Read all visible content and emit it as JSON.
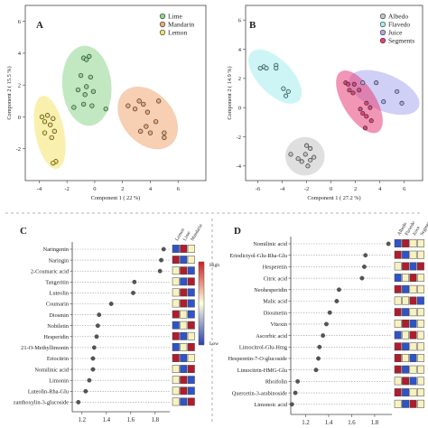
{
  "chart_data": [
    {
      "panel": "A",
      "type": "scatter",
      "xlabel": "Component 1 ( 22 %)",
      "ylabel": "Component 2 ( 15.5 %)",
      "xlim": [
        -5,
        8
      ],
      "ylim": [
        -4,
        7
      ],
      "xticks": [
        -4,
        -2,
        0,
        2,
        4,
        6
      ],
      "yticks": [
        -2,
        0,
        2,
        4,
        6
      ],
      "legend_position": "top-right",
      "series": [
        {
          "name": "Lime",
          "color": "#8ed68e",
          "points": [
            [
              -0.8,
              3.7
            ],
            [
              -0.6,
              3.6
            ],
            [
              -0.4,
              3.8
            ],
            [
              -1.0,
              2.6
            ],
            [
              -0.3,
              2.5
            ],
            [
              -0.6,
              1.9
            ],
            [
              -1.2,
              1.7
            ],
            [
              -0.7,
              1.4
            ],
            [
              -0.1,
              1.6
            ],
            [
              -0.8,
              0.8
            ],
            [
              -0.2,
              0.7
            ],
            [
              -1.5,
              0.6
            ],
            [
              0.8,
              0.5
            ]
          ]
        },
        {
          "name": "Mandarin",
          "color": "#f0a874",
          "points": [
            [
              3.2,
              1.0
            ],
            [
              4.6,
              1.0
            ],
            [
              2.4,
              0.7
            ],
            [
              2.9,
              0.5
            ],
            [
              3.8,
              0.3
            ],
            [
              3.5,
              0.8
            ],
            [
              4.4,
              -0.3
            ],
            [
              4.0,
              -1.0
            ],
            [
              3.7,
              -0.6
            ],
            [
              3.3,
              -0.9
            ],
            [
              5.0,
              -1.0
            ],
            [
              5.0,
              -1.3
            ]
          ]
        },
        {
          "name": "Lemon",
          "color": "#f5e36a",
          "points": [
            [
              -3.8,
              0.0
            ],
            [
              -3.4,
              0.1
            ],
            [
              -3.6,
              -0.3
            ],
            [
              -3.0,
              -0.1
            ],
            [
              -3.2,
              -0.5
            ],
            [
              -2.9,
              -0.9
            ],
            [
              -3.6,
              -1.0
            ],
            [
              -3.1,
              -1.3
            ],
            [
              -2.8,
              -2.8
            ],
            [
              -3.0,
              -2.9
            ]
          ]
        }
      ]
    },
    {
      "panel": "B",
      "type": "scatter",
      "xlabel": "Component 1 ( 27.2 %)",
      "ylabel": "Component 2 ( 14.9 %)",
      "xlim": [
        -7,
        7.5
      ],
      "ylim": [
        -5,
        7
      ],
      "xticks": [
        -6,
        -4,
        -2,
        0,
        2,
        4,
        6
      ],
      "yticks": [
        -4,
        -2,
        0,
        2,
        4,
        6
      ],
      "legend_position": "top-right",
      "series": [
        {
          "name": "Albedo",
          "color": "#c4c4c4",
          "points": [
            [
              -3.3,
              -3.2
            ],
            [
              -2.0,
              -2.6
            ],
            [
              -1.7,
              -2.8
            ],
            [
              -2.1,
              -3.2
            ],
            [
              -1.7,
              -3.6
            ],
            [
              -2.4,
              -3.7
            ],
            [
              -1.9,
              -4.0
            ],
            [
              -1.4,
              -3.4
            ],
            [
              -2.7,
              -3.5
            ]
          ]
        },
        {
          "name": "Flavedo",
          "color": "#a6ecec",
          "points": [
            [
              -5.8,
              2.7
            ],
            [
              -5.5,
              2.8
            ],
            [
              -5.3,
              2.7
            ],
            [
              -4.5,
              2.9
            ],
            [
              -4.5,
              2.7
            ],
            [
              -3.9,
              1.3
            ],
            [
              -3.7,
              0.8
            ],
            [
              -3.5,
              1.1
            ]
          ]
        },
        {
          "name": "Juice",
          "color": "#a9a9ee",
          "points": [
            [
              2.6,
              1.7
            ],
            [
              3.7,
              1.7
            ],
            [
              4.3,
              0.4
            ],
            [
              5.4,
              1.1
            ],
            [
              5.8,
              0.3
            ]
          ]
        },
        {
          "name": "Segments",
          "color": "#e8407a",
          "points": [
            [
              1.2,
              1.7
            ],
            [
              1.4,
              1.6
            ],
            [
              1.9,
              1.6
            ],
            [
              1.5,
              1.2
            ],
            [
              1.8,
              1.0
            ],
            [
              2.3,
              1.2
            ],
            [
              2.9,
              0.3
            ],
            [
              3.2,
              0.0
            ],
            [
              2.6,
              -0.4
            ],
            [
              2.9,
              -0.6
            ],
            [
              3.3,
              -0.9
            ],
            [
              2.8,
              -1.4
            ],
            [
              2.4,
              -0.1
            ]
          ]
        }
      ]
    },
    {
      "panel": "C",
      "type": "scatter",
      "xlabel": "VIP scores",
      "xlim": [
        1.12,
        1.92
      ],
      "xticks": [
        1.2,
        1.4,
        1.6,
        1.8
      ],
      "heatmap_columns": [
        "Lemon",
        "Lime",
        "Mandarin"
      ],
      "colorbar": {
        "high_label": "High",
        "low_label": "Low",
        "colors": [
          "#2c3fb0",
          "#ffffe0",
          "#cc2020"
        ]
      },
      "categories": [
        "Naringenin",
        "Naringin",
        "2-Coumaric acid",
        "Tangeritin",
        "Luteolin",
        "Coumarin",
        "Diosmin",
        "Nobiletin",
        "Hesperidin",
        "21-O-Methyllimonin",
        "Eriocitrin",
        "Nomilinic acid",
        "Limonin",
        "Luteolin-Rha-Glu",
        "zanthoxylin-3-glucoside"
      ],
      "values": [
        1.87,
        1.85,
        1.84,
        1.63,
        1.62,
        1.44,
        1.34,
        1.33,
        1.32,
        1.3,
        1.29,
        1.29,
        1.26,
        1.23,
        1.17
      ],
      "heatmap": [
        [
          "low",
          "high",
          "mid"
        ],
        [
          "high",
          "low",
          "mid"
        ],
        [
          "mid",
          "high",
          "low"
        ],
        [
          "mid",
          "low",
          "high"
        ],
        [
          "mid",
          "high",
          "low"
        ],
        [
          "mid",
          "high",
          "low"
        ],
        [
          "high",
          "mid",
          "low"
        ],
        [
          "low",
          "mid",
          "high"
        ],
        [
          "high",
          "low",
          "mid"
        ],
        [
          "low",
          "mid",
          "high"
        ],
        [
          "high",
          "low",
          "mid"
        ],
        [
          "mid",
          "low",
          "high"
        ],
        [
          "mid",
          "high",
          "low"
        ],
        [
          "mid",
          "high",
          "low"
        ],
        [
          "mid",
          "low",
          "high"
        ]
      ]
    },
    {
      "panel": "D",
      "type": "scatter",
      "xlabel": "VIP scores",
      "xlim": [
        1.07,
        1.95
      ],
      "xticks": [
        1.2,
        1.4,
        1.6,
        1.8
      ],
      "heatmap_columns": [
        "Albedo",
        "Flavedo",
        "Juice",
        "Segments"
      ],
      "categories": [
        "Nomilinic acid",
        "Eriodictyol-Glu-Rha-Glu",
        "Hesperetin",
        "Citric acid",
        "Neohesperidin",
        "Malic acid",
        "Diosmetin",
        "Vitexin",
        "Ascorbic acid",
        "Limocitrol-Glu-Hmg",
        "Hesperetin-7-O-glucoside",
        "Limocitrin-HMG-Glu",
        "Rhoifolin",
        "Quercetin-3-arabinoside",
        "Limonoic acid"
      ],
      "values": [
        1.92,
        1.72,
        1.71,
        1.69,
        1.49,
        1.47,
        1.41,
        1.38,
        1.35,
        1.32,
        1.31,
        1.29,
        1.13,
        1.11,
        1.08
      ],
      "heatmap": [
        [
          "low",
          "high",
          "mid",
          "mid"
        ],
        [
          "high",
          "low",
          "mid",
          "mid"
        ],
        [
          "mid",
          "high",
          "low",
          "high"
        ],
        [
          "low",
          "mid",
          "high",
          "mid"
        ],
        [
          "high",
          "low",
          "mid",
          "mid"
        ],
        [
          "mid",
          "mid",
          "high",
          "low"
        ],
        [
          "high",
          "low",
          "mid",
          "mid"
        ],
        [
          "mid",
          "high",
          "low",
          "mid"
        ],
        [
          "low",
          "mid",
          "high",
          "mid"
        ],
        [
          "high",
          "low",
          "mid",
          "mid"
        ],
        [
          "high",
          "mid",
          "low",
          "mid"
        ],
        [
          "high",
          "low",
          "mid",
          "mid"
        ],
        [
          "mid",
          "high",
          "low",
          "mid"
        ],
        [
          "high",
          "low",
          "mid",
          "mid"
        ],
        [
          "mid",
          "low",
          "high",
          "mid"
        ]
      ]
    }
  ],
  "panel_labels": {
    "a": "A",
    "b": "B",
    "c": "C",
    "d": "D"
  },
  "heat_colors": {
    "low": "#2f54c8",
    "mid": "#f7f2c0",
    "high": "#b01c2e"
  }
}
